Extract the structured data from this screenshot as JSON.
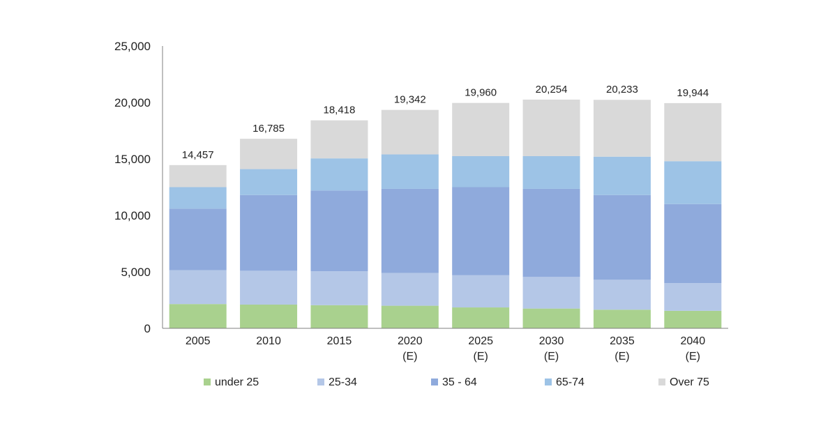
{
  "chart_data": {
    "type": "bar",
    "stacked": true,
    "categories": [
      [
        "2005"
      ],
      [
        "2010"
      ],
      [
        "2015"
      ],
      [
        "2020",
        "(E)"
      ],
      [
        "2025",
        "(E)"
      ],
      [
        "2030",
        "(E)"
      ],
      [
        "2035",
        "(E)"
      ],
      [
        "2040",
        "(E)"
      ]
    ],
    "series": [
      {
        "name": "under 25",
        "color": "#a9d18e",
        "values": [
          2150,
          2100,
          2050,
          2000,
          1850,
          1750,
          1650,
          1550
        ]
      },
      {
        "name": "25-34",
        "color": "#b4c7e7",
        "values": [
          3000,
          3000,
          3000,
          2900,
          2850,
          2800,
          2650,
          2450
        ]
      },
      {
        "name": "35 - 64",
        "color": "#8faadc",
        "values": [
          5450,
          6700,
          7150,
          7450,
          7800,
          7800,
          7500,
          7000
        ]
      },
      {
        "name": "65-74",
        "color": "#9dc3e6",
        "values": [
          1900,
          2300,
          2850,
          3050,
          2750,
          2900,
          3400,
          3800
        ]
      },
      {
        "name": "Over 75",
        "color": "#d9d9d9",
        "values": [
          1957,
          2685,
          3368,
          3942,
          4710,
          5004,
          5033,
          5144
        ]
      }
    ],
    "totals": [
      "14,457",
      "16,785",
      "18,418",
      "19,342",
      "19,960",
      "20,254",
      "20,233",
      "19,944"
    ],
    "y_ticks": [
      "0",
      "5,000",
      "10,000",
      "15,000",
      "20,000",
      "25,000"
    ],
    "ylim": [
      0,
      25000
    ],
    "title": "",
    "xlabel": "",
    "ylabel": "",
    "legend_position": "bottom",
    "grid": false
  }
}
